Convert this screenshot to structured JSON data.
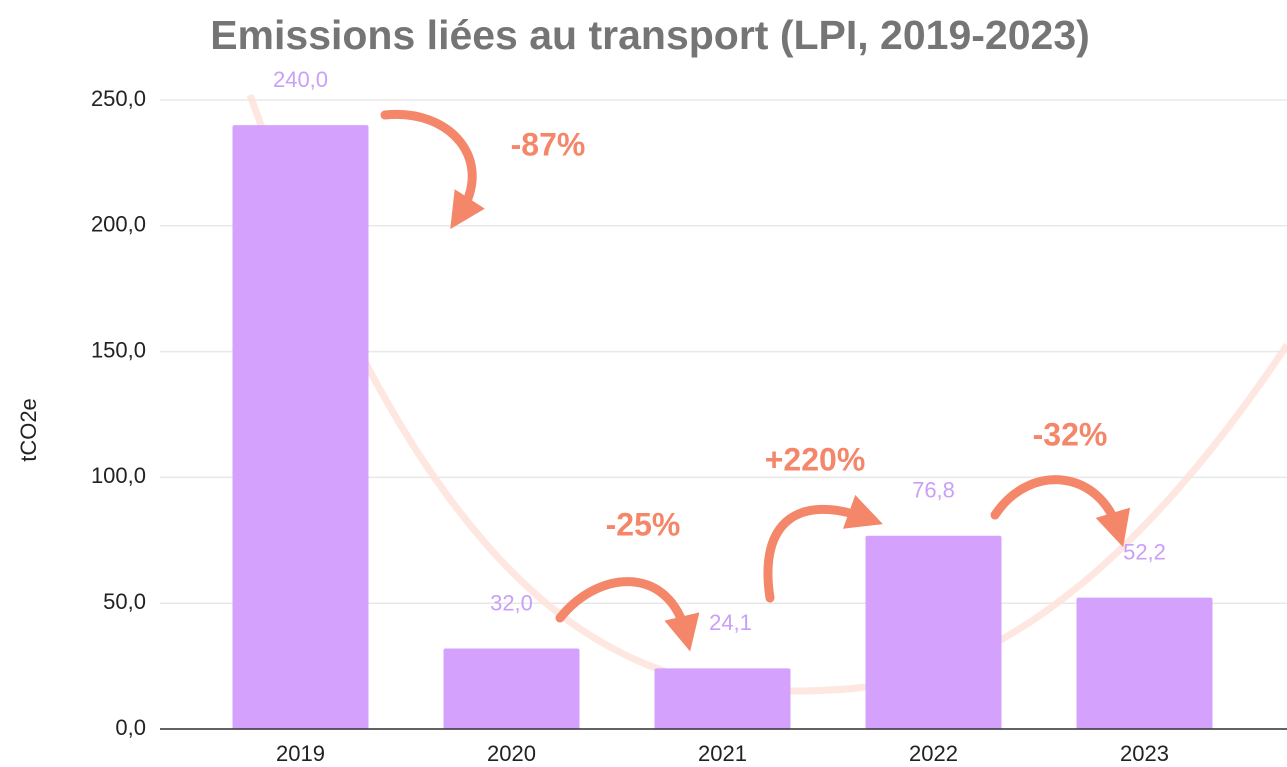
{
  "chart_data": {
    "type": "bar",
    "title": "Emissions liées au transport (LPI, 2019-2023)",
    "y_label": "tCO2e",
    "categories": [
      "2019",
      "2020",
      "2021",
      "2022",
      "2023"
    ],
    "values": [
      240.0,
      32.0,
      24.1,
      76.8,
      52.2
    ],
    "value_labels": [
      "240,0",
      "32,0",
      "24,1",
      "76,8",
      "52,2"
    ],
    "color": "#d4a1fd",
    "ylim": [
      0,
      250
    ],
    "yticks": [
      {
        "value": 0,
        "label": "0,0"
      },
      {
        "value": 50,
        "label": "50,0"
      },
      {
        "value": 100,
        "label": "100,0"
      },
      {
        "value": 150,
        "label": "150,0"
      },
      {
        "value": 200,
        "label": "200,0"
      },
      {
        "value": 250,
        "label": "250,0"
      }
    ],
    "grid": true,
    "annotations": [
      "-87%",
      "-25%",
      "+220%",
      "-32%"
    ]
  }
}
